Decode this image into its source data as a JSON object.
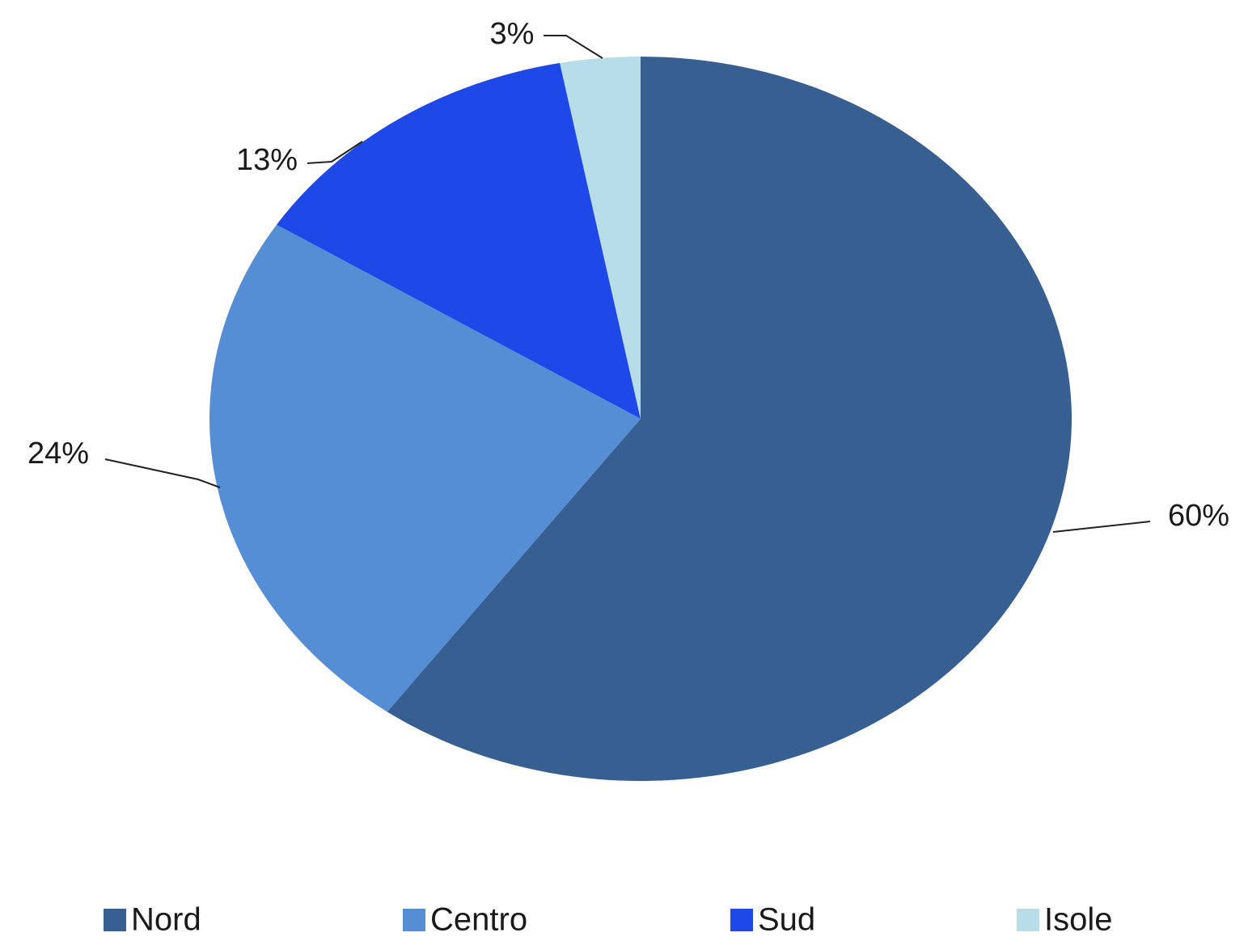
{
  "chart_data": {
    "type": "pie",
    "title": "",
    "legend_position": "bottom",
    "start_angle": "12 o'clock, clockwise",
    "slices": [
      {
        "name": "Nord",
        "value": 60,
        "label": "60%",
        "color": "#375F91"
      },
      {
        "name": "Centro",
        "value": 24,
        "label": "24%",
        "color": "#558ED5"
      },
      {
        "name": "Sud",
        "value": 13,
        "label": "13%",
        "color": "#1F48E8"
      },
      {
        "name": "Isole",
        "value": 3,
        "label": "3%",
        "color": "#B7DDE8"
      }
    ]
  }
}
